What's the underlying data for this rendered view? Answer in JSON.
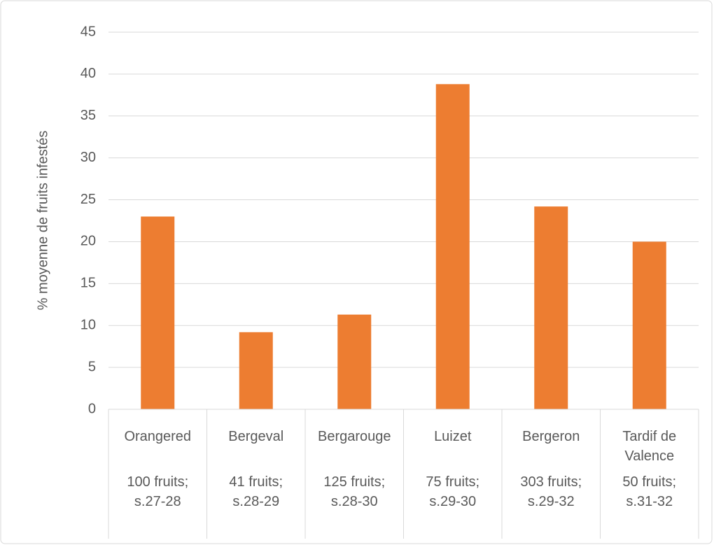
{
  "chart_data": {
    "type": "bar",
    "y_label": "% moyenne de fruits infestés",
    "categories": [
      "Orangered",
      "Bergeval",
      "Bergarouge",
      "Luizet",
      "Bergeron",
      "Tardif de Valence"
    ],
    "category_notes": [
      "100 fruits; s.27-28",
      "41 fruits; s.28-29",
      "125 fruits; s.28-30",
      "75 fruits; s.29-30",
      "303 fruits; s.29-32",
      "50 fruits; s.31-32"
    ],
    "values": [
      23,
      9.2,
      11.3,
      38.8,
      24.2,
      20
    ],
    "color": "#ed7d31",
    "ylim": [
      0,
      45
    ],
    "yticks": [
      0,
      5,
      10,
      15,
      20,
      25,
      30,
      35,
      40,
      45
    ],
    "grid": true
  }
}
